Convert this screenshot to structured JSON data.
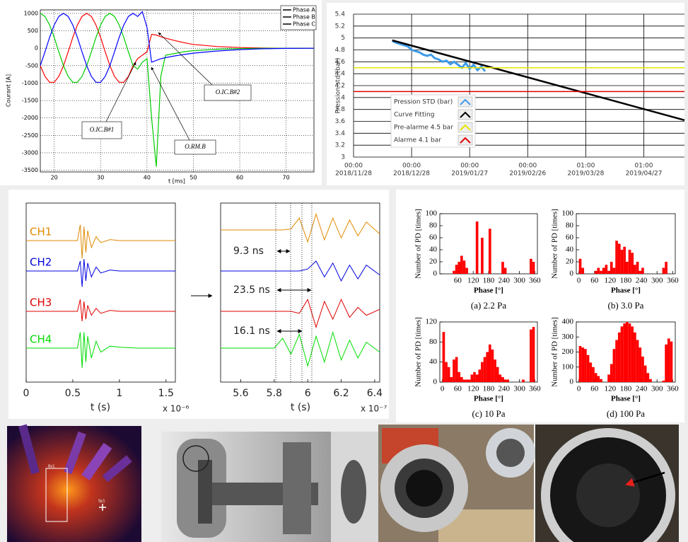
{
  "chart_data": [
    {
      "type": "line",
      "xlabel": "t [ms]",
      "ylabel": "Courant [A]",
      "x": [
        17,
        18,
        19,
        20,
        21,
        22,
        23,
        24,
        25,
        26,
        27,
        28,
        29,
        30,
        31,
        32,
        33,
        34,
        35,
        36,
        37,
        38,
        39,
        40,
        41,
        42,
        43,
        44,
        46,
        48,
        50,
        55,
        60,
        65,
        70,
        76
      ],
      "xlim": [
        17,
        76
      ],
      "ylim": [
        -3550,
        1100
      ],
      "xticks": [
        20,
        30,
        40,
        50,
        60,
        70
      ],
      "yticks": [
        -3500,
        -3000,
        -2500,
        -2000,
        -1500,
        -1000,
        -500,
        0,
        500,
        1000
      ],
      "grid": true,
      "legend": "upper right",
      "annotations": [
        "O.IC.B#1",
        "O.IC.B#2",
        "O.RM.B"
      ],
      "series": [
        {
          "name": "Phase A",
          "color": "#ff0000",
          "values": [
            -500,
            -809,
            -978,
            -978,
            -809,
            -500,
            -105,
            309,
            669,
            914,
            1000,
            914,
            669,
            309,
            -105,
            -500,
            -809,
            -978,
            -978,
            -809,
            -500,
            -300,
            -200,
            -100,
            400,
            380,
            330,
            290,
            220,
            160,
            110,
            50,
            20,
            5,
            0,
            0
          ]
        },
        {
          "name": "Phase B",
          "color": "#00cc00",
          "values": [
            1000,
            914,
            669,
            309,
            -105,
            -500,
            -809,
            -978,
            -978,
            -809,
            -500,
            -105,
            309,
            669,
            914,
            1000,
            914,
            669,
            309,
            -105,
            -500,
            -600,
            -400,
            -300,
            -2000,
            -3400,
            -800,
            -200,
            -150,
            -100,
            -70,
            -30,
            -10,
            0,
            0,
            0
          ]
        },
        {
          "name": "Phase C",
          "color": "#0000ff",
          "values": [
            -500,
            -105,
            309,
            669,
            914,
            1000,
            914,
            669,
            309,
            -105,
            -500,
            -809,
            -978,
            -978,
            -809,
            -500,
            -105,
            309,
            669,
            914,
            1000,
            914,
            1050,
            600,
            -400,
            -350,
            -300,
            -270,
            -220,
            -180,
            -140,
            -80,
            -40,
            -15,
            -5,
            0
          ]
        }
      ]
    },
    {
      "type": "line",
      "ylabel": "Pression std (bar)",
      "xlim": [
        "2018/11/28",
        "2019/05/18"
      ],
      "ylim": [
        3,
        5.4
      ],
      "xticks": [
        {
          "value": "2018/11/28",
          "time": "00:00",
          "label": "2018/11/28"
        },
        {
          "value": "2018/12/28",
          "time": "00:00",
          "label": "2018/12/28"
        },
        {
          "value": "2019/01/27",
          "time": "00:00",
          "label": "2019/01/27"
        },
        {
          "value": "2019/02/26",
          "time": "00:00",
          "label": "2019/02/26"
        },
        {
          "value": "2019/03/28",
          "time": "01:00",
          "label": "2019/03/28"
        },
        {
          "value": "2019/04/27",
          "time": "01:00",
          "label": "2019/04/27"
        }
      ],
      "yticks": [
        3,
        3.2,
        3.4,
        3.6,
        3.8,
        4,
        4.2,
        4.4,
        4.6,
        4.8,
        5,
        5.2,
        5.4
      ],
      "grid": true,
      "legend": "lower left",
      "series": [
        {
          "name": "Pression STD (bar)",
          "color": "#3d9be9",
          "x": [
            "2018/12/18",
            "2018/12/20",
            "2018/12/22",
            "2018/12/24",
            "2018/12/26",
            "2018/12/28",
            "2018/12/30",
            "2019/01/01",
            "2019/01/03",
            "2019/01/05",
            "2019/01/07",
            "2019/01/09",
            "2019/01/11",
            "2019/01/13",
            "2019/01/15",
            "2019/01/17",
            "2019/01/19",
            "2019/01/21",
            "2019/01/23",
            "2019/01/25",
            "2019/01/27",
            "2019/01/29",
            "2019/01/31",
            "2019/02/02",
            "2019/02/04"
          ],
          "values": [
            4.95,
            4.92,
            4.9,
            4.88,
            4.86,
            4.8,
            4.78,
            4.76,
            4.72,
            4.7,
            4.72,
            4.66,
            4.64,
            4.6,
            4.62,
            4.56,
            4.6,
            4.55,
            4.5,
            4.58,
            4.48,
            4.55,
            4.46,
            4.52,
            4.44
          ]
        },
        {
          "name": "Curve Fitting",
          "color": "#000000",
          "x": [
            "2018/12/18",
            "2019/05/18"
          ],
          "values": [
            4.96,
            3.62
          ]
        },
        {
          "name": "Pre-alarme 4.5 bar",
          "color": "#e6e600",
          "x": [
            "2018/11/28",
            "2019/05/18"
          ],
          "values": [
            4.5,
            4.5
          ]
        },
        {
          "name": "Alarme 4.1 bar",
          "color": "#e00000",
          "x": [
            "2018/11/28",
            "2019/05/18"
          ],
          "values": [
            4.1,
            4.1
          ]
        }
      ]
    },
    {
      "type": "line",
      "xlabel": "t (s)",
      "xlabel_note": "x 10⁻⁶",
      "x": [
        0,
        0.55,
        0.58,
        0.6,
        0.62,
        0.64,
        0.66,
        0.7,
        0.75,
        0.8,
        0.9,
        1.0,
        1.2,
        1.6
      ],
      "xlim": [
        0,
        1.6
      ],
      "xticks": [
        0,
        0.5,
        1,
        1.5
      ],
      "series": [
        {
          "name": "CH1",
          "color": "#e08a00",
          "values": [
            0,
            0,
            0.8,
            -0.9,
            0.7,
            -0.6,
            0.5,
            -0.35,
            0.2,
            -0.1,
            0.05,
            0,
            0,
            0
          ]
        },
        {
          "name": "CH2",
          "color": "#0000e0",
          "values": [
            0,
            0,
            0.5,
            -0.8,
            0.6,
            -0.5,
            0.4,
            -0.3,
            0.2,
            -0.1,
            0.05,
            0,
            0,
            0
          ]
        },
        {
          "name": "CH3",
          "color": "#e00000",
          "values": [
            0,
            0,
            0.6,
            -0.5,
            0.5,
            -0.4,
            0.3,
            -0.2,
            0.15,
            -0.1,
            0.05,
            0,
            0,
            0
          ]
        },
        {
          "name": "CH4",
          "color": "#00dd00",
          "values": [
            0,
            0,
            0.8,
            -1,
            0.8,
            -0.7,
            0.6,
            -0.5,
            0.35,
            -0.2,
            0.1,
            0.05,
            0,
            0
          ]
        }
      ]
    },
    {
      "type": "line",
      "xlabel": "t (s)",
      "xlabel_note": "x 10⁻⁷",
      "x": [
        5.48,
        5.8,
        5.85,
        5.9,
        5.95,
        6.0,
        6.05,
        6.1,
        6.15,
        6.2,
        6.25,
        6.3,
        6.35,
        6.43
      ],
      "xlim": [
        5.48,
        6.43
      ],
      "xticks": [
        5.6,
        5.8,
        6,
        6.2,
        6.4
      ],
      "annotations": [
        "9.3 ns",
        "23.5 ns",
        "16.1 ns"
      ],
      "series": [
        {
          "color": "#e08a00",
          "values": [
            0,
            0,
            0,
            0.05,
            0.6,
            -0.6,
            0.8,
            -0.5,
            0.6,
            -0.4,
            0.5,
            -0.3,
            0.4,
            -0.2
          ]
        },
        {
          "color": "#0000e0",
          "values": [
            0,
            0,
            0,
            0,
            0,
            0.1,
            0.5,
            -0.3,
            0.4,
            -0.5,
            0.3,
            -0.4,
            0.3,
            -0.2
          ]
        },
        {
          "color": "#e00000",
          "values": [
            0,
            0,
            0,
            0,
            -0.1,
            0.6,
            -0.8,
            0.5,
            -0.4,
            0.6,
            -0.3,
            0.2,
            -0.2,
            0.1
          ]
        },
        {
          "color": "#00dd00",
          "values": [
            0,
            0,
            0.5,
            -0.3,
            0.7,
            -0.9,
            0.6,
            -0.7,
            0.8,
            -0.6,
            0.4,
            -0.5,
            0.3,
            -0.2
          ]
        }
      ]
    },
    {
      "type": "histogram",
      "title": "(a) 2.2 Pa",
      "xlabel": "Phase [°]",
      "ylabel": "Number of PD [times]",
      "color": "#ff0000",
      "bins": [
        0,
        10,
        20,
        30,
        40,
        50,
        60,
        70,
        80,
        90,
        100,
        110,
        120,
        130,
        140,
        150,
        160,
        170,
        180,
        190,
        200,
        210,
        220,
        230,
        240,
        250,
        260,
        270,
        280,
        290,
        300,
        310,
        320,
        330,
        340,
        350,
        360
      ],
      "values": [
        0,
        0,
        0,
        0,
        5,
        15,
        20,
        30,
        22,
        10,
        0,
        0,
        0,
        87,
        0,
        60,
        0,
        0,
        75,
        0,
        0,
        0,
        0,
        20,
        10,
        0,
        0,
        0,
        0,
        0,
        0,
        0,
        0,
        0,
        25,
        20
      ],
      "xlim": [
        -10,
        370
      ],
      "ylim": [
        0,
        100
      ],
      "xticks": [
        60,
        120,
        180,
        240,
        300,
        360
      ],
      "yticks": [
        0,
        20,
        40,
        60,
        80,
        100
      ]
    },
    {
      "type": "histogram",
      "title": "(b) 3.0 Pa",
      "xlabel": "Phase [°]",
      "ylabel": "Number of PD [times]",
      "color": "#ff0000",
      "bins": [
        0,
        10,
        20,
        30,
        40,
        50,
        60,
        70,
        80,
        90,
        100,
        110,
        120,
        130,
        140,
        150,
        160,
        170,
        180,
        190,
        200,
        210,
        220,
        230,
        240,
        250,
        260,
        270,
        280,
        290,
        300,
        310,
        320,
        330,
        340,
        350,
        360
      ],
      "values": [
        25,
        10,
        0,
        0,
        0,
        0,
        5,
        10,
        5,
        10,
        15,
        5,
        20,
        10,
        55,
        50,
        40,
        45,
        20,
        40,
        35,
        15,
        20,
        5,
        10,
        0,
        0,
        0,
        0,
        0,
        0,
        0,
        10,
        20,
        0,
        0
      ],
      "xlim": [
        -10,
        370
      ],
      "ylim": [
        0,
        100
      ],
      "xticks": [
        0,
        60,
        120,
        180,
        240,
        300,
        360
      ],
      "yticks": [
        0,
        20,
        40,
        60,
        80,
        100
      ]
    },
    {
      "type": "histogram",
      "title": "(c) 10 Pa",
      "xlabel": "Phase [°]",
      "ylabel": "Number of PD [times]",
      "color": "#ff0000",
      "bins": [
        0,
        10,
        20,
        30,
        40,
        50,
        60,
        70,
        80,
        90,
        100,
        110,
        120,
        130,
        140,
        150,
        160,
        170,
        180,
        190,
        200,
        210,
        220,
        230,
        240,
        250,
        260,
        270,
        280,
        290,
        300,
        310,
        320,
        330,
        340,
        350,
        360
      ],
      "values": [
        100,
        40,
        30,
        10,
        45,
        50,
        20,
        10,
        5,
        5,
        5,
        15,
        20,
        15,
        25,
        40,
        50,
        60,
        75,
        65,
        45,
        30,
        15,
        10,
        5,
        5,
        0,
        0,
        0,
        0,
        0,
        5,
        0,
        0,
        105,
        110
      ],
      "xlim": [
        -10,
        370
      ],
      "ylim": [
        0,
        120
      ],
      "xticks": [
        0,
        60,
        120,
        180,
        240,
        300,
        360
      ],
      "yticks": [
        0,
        40,
        80,
        120
      ]
    },
    {
      "type": "histogram",
      "title": "(d) 100 Pa",
      "xlabel": "Phase [°]",
      "ylabel": "Number of PD [times]",
      "color": "#ff0000",
      "bins": [
        0,
        10,
        20,
        30,
        40,
        50,
        60,
        70,
        80,
        90,
        100,
        110,
        120,
        130,
        140,
        150,
        160,
        170,
        180,
        190,
        200,
        210,
        220,
        230,
        240,
        250,
        260,
        270,
        280,
        290,
        300,
        310,
        320,
        330,
        340,
        350,
        360
      ],
      "values": [
        240,
        230,
        220,
        180,
        130,
        100,
        60,
        40,
        20,
        0,
        0,
        50,
        120,
        220,
        280,
        330,
        370,
        390,
        400,
        390,
        370,
        330,
        280,
        230,
        170,
        110,
        60,
        20,
        0,
        0,
        0,
        0,
        10,
        250,
        290,
        270
      ],
      "xlim": [
        -10,
        370
      ],
      "ylim": [
        0,
        400
      ],
      "xticks": [
        0,
        60,
        120,
        180,
        240,
        300,
        360
      ],
      "yticks": [
        0,
        100,
        200,
        300,
        400
      ]
    }
  ],
  "photos": {
    "labels": [
      "Bx1",
      "Sp1"
    ]
  }
}
